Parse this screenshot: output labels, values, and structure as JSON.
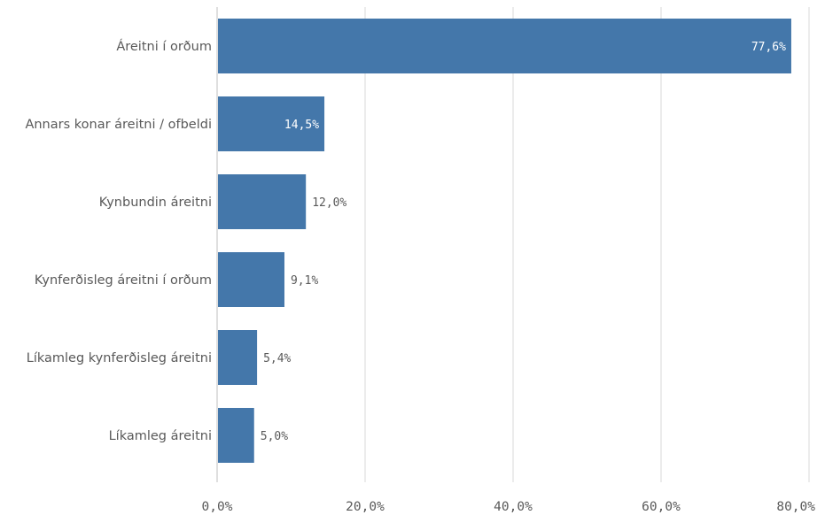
{
  "chart_data": {
    "type": "bar",
    "orientation": "horizontal",
    "categories": [
      "Áreitni í orðum",
      "Annars konar áreitni / ofbeldi",
      "Kynbundin áreitni",
      "Kynferðisleg áreitni í orðum",
      "Líkamleg kynferðisleg áreitni",
      "Líkamleg áreitni"
    ],
    "values": [
      77.6,
      14.5,
      12.0,
      9.1,
      5.4,
      5.0
    ],
    "value_labels": [
      "77,6%",
      "14,5%",
      "12,0%",
      "9,1%",
      "5,4%",
      "5,0%"
    ],
    "xlim": [
      0,
      80
    ],
    "x_ticks": [
      0,
      20,
      40,
      60,
      80
    ],
    "x_tick_labels": [
      "0,0%",
      "20,0%",
      "40,0%",
      "60,0%",
      "80,0%"
    ],
    "grid": true,
    "bar_color": "#4477aa",
    "title": "",
    "xlabel": "",
    "ylabel": ""
  }
}
